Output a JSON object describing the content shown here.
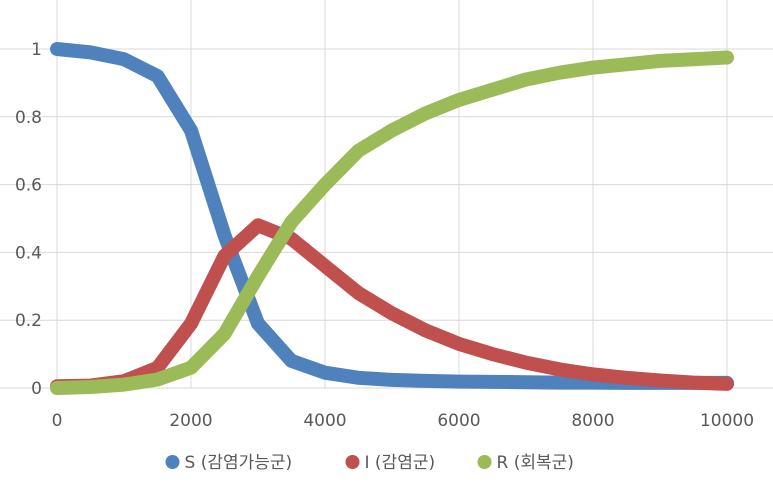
{
  "chart_data": {
    "type": "line",
    "title": "",
    "xlabel": "",
    "ylabel": "",
    "xlim": [
      0,
      10000
    ],
    "ylim": [
      0,
      1
    ],
    "x_ticks": [
      0,
      2000,
      4000,
      6000,
      8000,
      10000
    ],
    "y_ticks": [
      0,
      0.2,
      0.4,
      0.6,
      0.8,
      1
    ],
    "x_tick_labels": [
      "0",
      "2000",
      "4000",
      "6000",
      "8000",
      "10000"
    ],
    "y_tick_labels": [
      "0",
      "0.2",
      "0.4",
      "0.6",
      "0.8",
      "1"
    ],
    "grid": true,
    "legend_position": "bottom",
    "x": [
      0,
      500,
      1000,
      1500,
      2000,
      2500,
      3000,
      3500,
      4000,
      4500,
      5000,
      5500,
      6000,
      6500,
      7000,
      7500,
      8000,
      8500,
      9000,
      9500,
      10000
    ],
    "series": [
      {
        "name": "S (감염가능군)",
        "color": "#4F81BD",
        "values": [
          1.0,
          0.99,
          0.97,
          0.92,
          0.76,
          0.45,
          0.19,
          0.08,
          0.045,
          0.03,
          0.024,
          0.021,
          0.019,
          0.018,
          0.017,
          0.016,
          0.016,
          0.015,
          0.015,
          0.015,
          0.015
        ]
      },
      {
        "name": "I (감염군)",
        "color": "#C0504D",
        "values": [
          0.005,
          0.007,
          0.02,
          0.06,
          0.19,
          0.39,
          0.48,
          0.44,
          0.36,
          0.28,
          0.22,
          0.17,
          0.13,
          0.1,
          0.075,
          0.055,
          0.04,
          0.03,
          0.022,
          0.016,
          0.012
        ]
      },
      {
        "name": "R (회복군)",
        "color": "#9BBB59",
        "values": [
          0.0,
          0.003,
          0.01,
          0.025,
          0.06,
          0.16,
          0.33,
          0.49,
          0.6,
          0.7,
          0.76,
          0.81,
          0.85,
          0.88,
          0.91,
          0.93,
          0.945,
          0.955,
          0.965,
          0.97,
          0.975
        ]
      }
    ]
  }
}
